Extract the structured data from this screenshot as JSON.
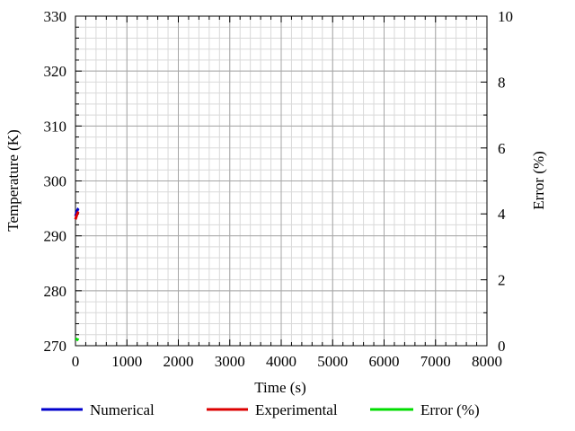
{
  "chart_data": {
    "type": "line",
    "title": "",
    "xlabel": "Time (s)",
    "ylabel": "Temperature (K)",
    "y2label": "Error (%)",
    "xlim": [
      0,
      8000
    ],
    "ylim": [
      270,
      330
    ],
    "y2lim": [
      0,
      10
    ],
    "xticks": [
      0,
      1000,
      2000,
      3000,
      4000,
      5000,
      6000,
      7000,
      8000
    ],
    "yticks": [
      270,
      280,
      290,
      300,
      310,
      320,
      330
    ],
    "y2ticks": [
      0,
      2,
      4,
      6,
      8,
      10
    ],
    "grid": true,
    "legend_position": "bottom",
    "series": [
      {
        "name": "Numerical",
        "axis": "left",
        "color": "#0000cc",
        "x": [
          0,
          10,
          20,
          30,
          40,
          50,
          60
        ],
        "y": [
          293.6,
          293.9,
          294.2,
          294.5,
          294.7,
          294.9,
          295.0
        ]
      },
      {
        "name": "Experimental",
        "axis": "left",
        "color": "#dd0000",
        "x": [
          0,
          10,
          20,
          30,
          40,
          50,
          60
        ],
        "y": [
          293.0,
          293.3,
          293.6,
          293.9,
          294.1,
          294.3,
          294.4
        ]
      },
      {
        "name": "Error (%)",
        "axis": "right",
        "color": "#00dd00",
        "x": [
          0,
          10,
          20,
          30,
          40,
          50,
          60
        ],
        "y": [
          0.2,
          0.2,
          0.2,
          0.19,
          0.18,
          0.18,
          0.17
        ]
      }
    ]
  }
}
